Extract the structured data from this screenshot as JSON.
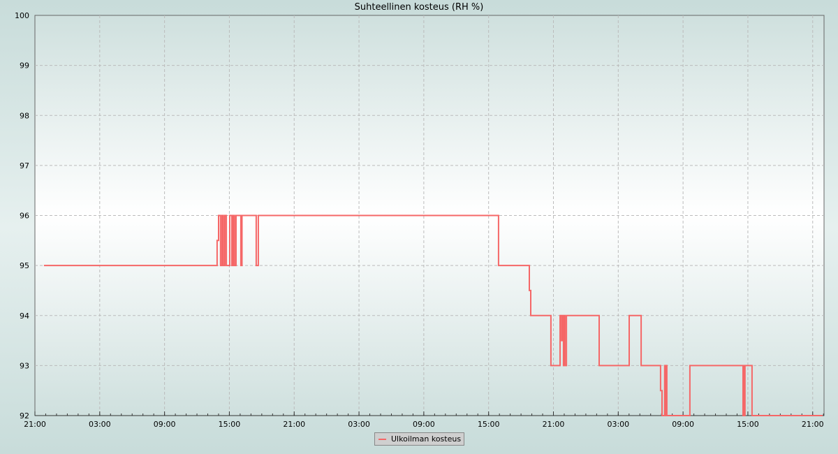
{
  "chart_data": {
    "type": "line",
    "step": true,
    "title": "Suhteellinen kosteus (RH %)",
    "xlabel": "",
    "ylabel": "",
    "ylim": [
      92,
      100
    ],
    "y_ticks": [
      "92",
      "93",
      "94",
      "95",
      "96",
      "97",
      "98",
      "99",
      "100"
    ],
    "x_ticks": [
      "21:00",
      "03:00",
      "09:00",
      "15:00",
      "21:00",
      "03:00",
      "09:00",
      "15:00",
      "21:00",
      "03:00",
      "09:00",
      "15:00",
      "21:00"
    ],
    "x_end": "22:03",
    "grid": true,
    "legend_position": "bottom",
    "colors": {
      "series": "#f56767"
    },
    "series": [
      {
        "name": "Ulkoilman kosteus",
        "points": [
          [
            "21:50",
            95
          ],
          [
            "13:52",
            95.5
          ],
          [
            "14:00",
            96
          ],
          [
            "14:11",
            95
          ],
          [
            "14:19",
            96
          ],
          [
            "14:27",
            95
          ],
          [
            "14:35",
            96
          ],
          [
            "14:43",
            95
          ],
          [
            "15:02",
            96
          ],
          [
            "15:14",
            95
          ],
          [
            "15:21",
            96
          ],
          [
            "15:29",
            95
          ],
          [
            "15:37",
            96
          ],
          [
            "16:04",
            95
          ],
          [
            "16:10",
            96
          ],
          [
            "17:29",
            95
          ],
          [
            "17:41",
            96
          ],
          [
            "15:55",
            95
          ],
          [
            "18:46",
            94.5
          ],
          [
            "18:54",
            94
          ],
          [
            "20:46",
            93
          ],
          [
            "21:37",
            94
          ],
          [
            "21:45",
            93.5
          ],
          [
            "21:49",
            94
          ],
          [
            "21:56",
            93
          ],
          [
            "22:00",
            94
          ],
          [
            "22:04",
            93
          ],
          [
            "22:12",
            94
          ],
          [
            "01:14",
            93
          ],
          [
            "04:01",
            94
          ],
          [
            "05:07",
            93
          ],
          [
            "06:55",
            92.5
          ],
          [
            "07:03",
            92
          ],
          [
            "07:18",
            93
          ],
          [
            "07:22",
            92
          ],
          [
            "07:26",
            93
          ],
          [
            "07:30",
            92
          ],
          [
            "09:38",
            93
          ],
          [
            "14:33",
            92
          ],
          [
            "14:37",
            93
          ],
          [
            "14:41",
            92
          ],
          [
            "14:44",
            93
          ],
          [
            "15:23",
            92
          ],
          [
            "21:55",
            92
          ]
        ]
      }
    ]
  }
}
